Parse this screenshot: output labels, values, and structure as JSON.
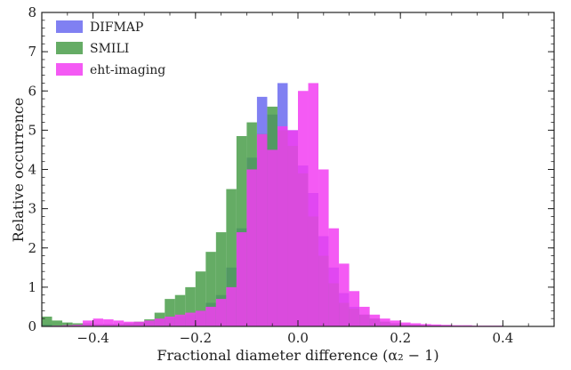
{
  "chart_data": {
    "type": "bar",
    "subtype": "overlaid-histogram",
    "title": "",
    "xlabel": "Fractional diameter difference (α₂ − 1)",
    "ylabel": "Relative occurrence",
    "xlim": [
      -0.5,
      0.5
    ],
    "ylim": [
      0,
      8
    ],
    "x_ticks": [
      -0.4,
      -0.2,
      0.0,
      0.2,
      0.4
    ],
    "x_tick_labels": [
      "−0.4",
      "−0.2",
      "0.0",
      "0.2",
      "0.4"
    ],
    "y_ticks": [
      0,
      1,
      2,
      3,
      4,
      5,
      6,
      7,
      8
    ],
    "y_tick_labels": [
      "0",
      "1",
      "2",
      "3",
      "4",
      "5",
      "6",
      "7",
      "8"
    ],
    "grid": false,
    "legend_position": "top-left",
    "bin_width": 0.02,
    "bin_starts": [
      -0.5,
      -0.48,
      -0.46,
      -0.44,
      -0.42,
      -0.4,
      -0.38,
      -0.36,
      -0.34,
      -0.32,
      -0.3,
      -0.28,
      -0.26,
      -0.24,
      -0.22,
      -0.2,
      -0.18,
      -0.16,
      -0.14,
      -0.12,
      -0.1,
      -0.08,
      -0.06,
      -0.04,
      -0.02,
      0.0,
      0.02,
      0.04,
      0.06,
      0.08,
      0.1,
      0.12,
      0.14,
      0.16,
      0.18,
      0.2,
      0.22,
      0.24,
      0.26,
      0.28,
      0.3,
      0.32,
      0.34,
      0.36,
      0.38,
      0.4,
      0.42,
      0.44,
      0.46,
      0.48
    ],
    "series": [
      {
        "name": "DIFMAP",
        "color": "#6a6af0",
        "values": [
          0.05,
          0.02,
          0.02,
          0.02,
          0.05,
          0.05,
          0.06,
          0.06,
          0.08,
          0.1,
          0.13,
          0.18,
          0.22,
          0.26,
          0.3,
          0.4,
          0.6,
          0.8,
          1.5,
          2.5,
          4.3,
          5.85,
          5.4,
          6.2,
          5.0,
          4.1,
          3.4,
          2.3,
          1.5,
          0.85,
          0.5,
          0.3,
          0.2,
          0.12,
          0.08,
          0.05,
          0.04,
          0.03,
          0.02,
          0.02,
          0.01,
          0.01,
          0.01,
          0.01,
          0.01,
          0.01,
          0.01,
          0.01,
          0.0,
          0.0
        ]
      },
      {
        "name": "SMILI",
        "color": "#4a9e4a",
        "values": [
          0.25,
          0.15,
          0.1,
          0.08,
          0.08,
          0.06,
          0.06,
          0.06,
          0.08,
          0.12,
          0.18,
          0.35,
          0.7,
          0.8,
          1.0,
          1.4,
          1.9,
          2.4,
          3.5,
          4.85,
          5.2,
          4.9,
          5.6,
          5.0,
          4.6,
          3.9,
          2.8,
          1.8,
          1.1,
          0.6,
          0.45,
          0.3,
          0.2,
          0.12,
          0.08,
          0.05,
          0.04,
          0.03,
          0.02,
          0.02,
          0.01,
          0.01,
          0.01,
          0.01,
          0.01,
          0.01,
          0.01,
          0.01,
          0.0,
          0.0
        ]
      },
      {
        "name": "eht-imaging",
        "color": "#f23df2",
        "values": [
          0.0,
          0.02,
          0.03,
          0.04,
          0.15,
          0.2,
          0.18,
          0.15,
          0.12,
          0.12,
          0.15,
          0.2,
          0.25,
          0.3,
          0.35,
          0.4,
          0.5,
          0.7,
          1.0,
          2.4,
          4.0,
          4.9,
          4.5,
          5.1,
          5.0,
          6.0,
          6.2,
          4.0,
          2.5,
          1.6,
          0.9,
          0.5,
          0.3,
          0.2,
          0.15,
          0.1,
          0.08,
          0.06,
          0.05,
          0.04,
          0.03,
          0.03,
          0.02,
          0.02,
          0.02,
          0.01,
          0.01,
          0.01,
          0.01,
          0.0
        ]
      }
    ]
  }
}
